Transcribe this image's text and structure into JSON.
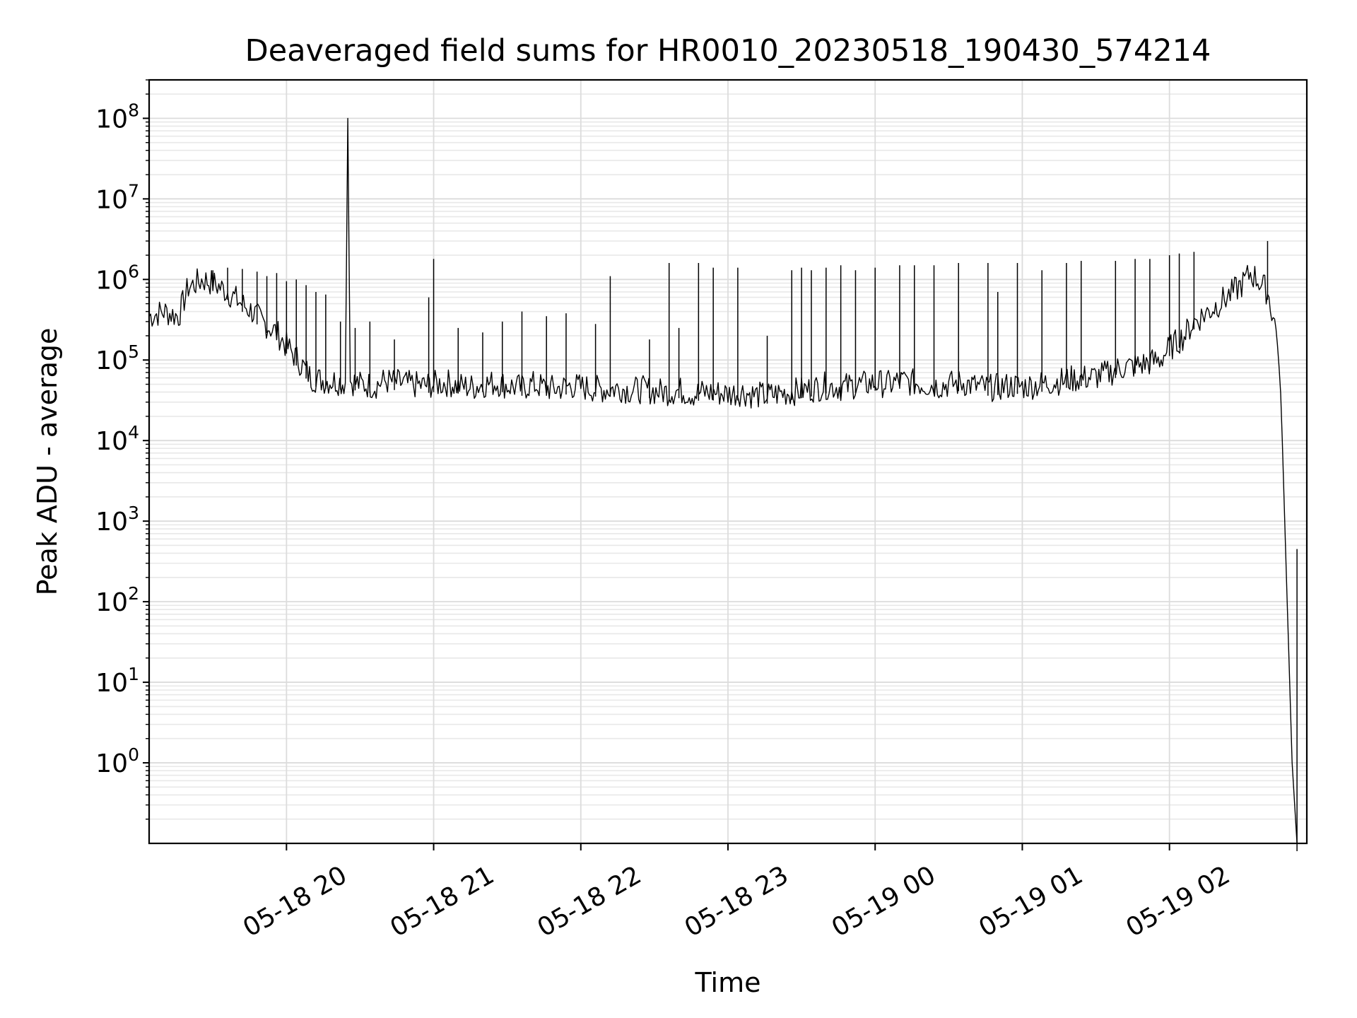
{
  "chart_data": {
    "type": "line",
    "title": "Deaveraged field sums for HR0010_20230518_190430_574214",
    "xlabel": "Time",
    "ylabel": "Peak ADU - average",
    "yscale": "log",
    "grid": true,
    "xlim": [
      "05-18 19:04",
      "05-19 02:56"
    ],
    "ylim": [
      0.1,
      300000000
    ],
    "x_ticks": [
      "05-18 20",
      "05-18 21",
      "05-18 22",
      "05-18 23",
      "05-19 00",
      "05-19 01",
      "05-19 02"
    ],
    "y_ticks": [
      {
        "value": 1,
        "base": "10",
        "exp": "0"
      },
      {
        "value": 10,
        "base": "10",
        "exp": "1"
      },
      {
        "value": 100,
        "base": "10",
        "exp": "2"
      },
      {
        "value": 1000,
        "base": "10",
        "exp": "3"
      },
      {
        "value": 10000,
        "base": "10",
        "exp": "4"
      },
      {
        "value": 100000,
        "base": "10",
        "exp": "5"
      },
      {
        "value": 1000000,
        "base": "10",
        "exp": "6"
      },
      {
        "value": 10000000,
        "base": "10",
        "exp": "7"
      },
      {
        "value": 100000000,
        "base": "10",
        "exp": "8"
      }
    ],
    "line_color": "#000000",
    "series": [
      {
        "x": [
          "05-18 19:04",
          "05-18 19:10",
          "05-18 19:16",
          "05-18 19:20",
          "05-18 19:26",
          "05-18 19:30",
          "05-18 19:36",
          "05-18 19:40",
          "05-18 19:46",
          "05-18 19:50",
          "05-18 19:56",
          "05-18 20:00",
          "05-18 20:06",
          "05-18 20:10",
          "05-18 20:16",
          "05-18 20:20",
          "05-18 20:24",
          "05-18 20:25",
          "05-18 20:26",
          "05-18 20:30",
          "05-18 20:36",
          "05-18 20:40",
          "05-18 20:46",
          "05-18 20:50",
          "05-18 20:56",
          "05-18 21:00",
          "05-18 21:06",
          "05-18 21:10",
          "05-18 21:16",
          "05-18 21:20",
          "05-18 21:26",
          "05-18 21:30",
          "05-18 21:36",
          "05-18 21:40",
          "05-18 21:46",
          "05-18 21:50",
          "05-18 21:56",
          "05-18 22:00",
          "05-18 22:06",
          "05-18 22:10",
          "05-18 22:16",
          "05-18 22:20",
          "05-18 22:26",
          "05-18 22:30",
          "05-18 22:36",
          "05-18 22:40",
          "05-18 22:46",
          "05-18 22:50",
          "05-18 22:56",
          "05-18 23:00",
          "05-18 23:06",
          "05-18 23:10",
          "05-18 23:16",
          "05-18 23:20",
          "05-18 23:26",
          "05-18 23:30",
          "05-18 23:36",
          "05-18 23:40",
          "05-18 23:46",
          "05-18 23:50",
          "05-18 23:56",
          "05-19 00:00",
          "05-19 00:06",
          "05-19 00:10",
          "05-19 00:16",
          "05-19 00:20",
          "05-19 00:26",
          "05-19 00:30",
          "05-19 00:36",
          "05-19 00:40",
          "05-19 00:46",
          "05-19 00:50",
          "05-19 00:56",
          "05-19 01:00",
          "05-19 01:06",
          "05-19 01:10",
          "05-19 01:16",
          "05-19 01:20",
          "05-19 01:26",
          "05-19 01:30",
          "05-19 01:36",
          "05-19 01:40",
          "05-19 01:46",
          "05-19 01:50",
          "05-19 01:56",
          "05-19 02:00",
          "05-19 02:06",
          "05-19 02:10",
          "05-19 02:16",
          "05-19 02:20",
          "05-19 02:26",
          "05-19 02:30",
          "05-19 02:33",
          "05-19 02:36",
          "05-19 02:40",
          "05-19 02:44",
          "05-19 02:46",
          "05-19 02:48",
          "05-19 02:50",
          "05-19 02:52",
          "05-19 02:54",
          "05-19 02:55"
        ],
        "y": [
          350000,
          400000,
          350000,
          800000,
          1000000,
          900000,
          700000,
          550000,
          400000,
          300000,
          220000,
          150000,
          90000,
          60000,
          55000,
          55000,
          52000,
          100000000,
          55000,
          50000,
          48000,
          55000,
          52000,
          50000,
          48000,
          50000,
          52000,
          48000,
          46000,
          50000,
          52000,
          48000,
          45000,
          50000,
          45000,
          44000,
          48000,
          46000,
          44000,
          43000,
          45000,
          42000,
          43000,
          41000,
          40000,
          42000,
          38000,
          40000,
          39000,
          38000,
          40000,
          37000,
          36000,
          38000,
          40000,
          42000,
          45000,
          48000,
          46000,
          48000,
          50000,
          52000,
          50000,
          55000,
          52000,
          50000,
          48000,
          50000,
          52000,
          48000,
          45000,
          46000,
          48000,
          47000,
          49000,
          52000,
          55000,
          58000,
          60000,
          62000,
          70000,
          80000,
          85000,
          90000,
          100000,
          140000,
          200000,
          300000,
          400000,
          500000,
          700000,
          900000,
          1200000,
          1000000,
          700000,
          200000,
          10000,
          100,
          1,
          0.1,
          0.1,
          0.1
        ]
      }
    ],
    "spikes": [
      {
        "x": "05-18 19:30",
        "y": 1300000
      },
      {
        "x": "05-18 19:36",
        "y": 1400000
      },
      {
        "x": "05-18 19:42",
        "y": 1350000
      },
      {
        "x": "05-18 19:48",
        "y": 1250000
      },
      {
        "x": "05-18 19:52",
        "y": 1100000
      },
      {
        "x": "05-18 19:56",
        "y": 1200000
      },
      {
        "x": "05-18 20:00",
        "y": 950000
      },
      {
        "x": "05-18 20:04",
        "y": 1000000
      },
      {
        "x": "05-18 20:08",
        "y": 850000
      },
      {
        "x": "05-18 20:12",
        "y": 700000
      },
      {
        "x": "05-18 20:16",
        "y": 650000
      },
      {
        "x": "05-18 20:22",
        "y": 300000
      },
      {
        "x": "05-18 20:28",
        "y": 250000
      },
      {
        "x": "05-18 20:34",
        "y": 300000
      },
      {
        "x": "05-18 20:44",
        "y": 180000
      },
      {
        "x": "05-18 21:00",
        "y": 1800000
      },
      {
        "x": "05-18 20:58",
        "y": 600000
      },
      {
        "x": "05-18 21:10",
        "y": 250000
      },
      {
        "x": "05-18 21:20",
        "y": 220000
      },
      {
        "x": "05-18 21:28",
        "y": 300000
      },
      {
        "x": "05-18 21:36",
        "y": 400000
      },
      {
        "x": "05-18 21:46",
        "y": 350000
      },
      {
        "x": "05-18 21:54",
        "y": 380000
      },
      {
        "x": "05-18 22:06",
        "y": 280000
      },
      {
        "x": "05-18 22:12",
        "y": 1100000
      },
      {
        "x": "05-18 22:28",
        "y": 180000
      },
      {
        "x": "05-18 22:36",
        "y": 1600000
      },
      {
        "x": "05-18 22:40",
        "y": 250000
      },
      {
        "x": "05-18 22:48",
        "y": 1600000
      },
      {
        "x": "05-18 22:54",
        "y": 1400000
      },
      {
        "x": "05-18 23:04",
        "y": 1400000
      },
      {
        "x": "05-18 23:16",
        "y": 200000
      },
      {
        "x": "05-18 23:26",
        "y": 1300000
      },
      {
        "x": "05-18 23:30",
        "y": 1400000
      },
      {
        "x": "05-18 23:34",
        "y": 1300000
      },
      {
        "x": "05-18 23:40",
        "y": 1400000
      },
      {
        "x": "05-18 23:46",
        "y": 1500000
      },
      {
        "x": "05-18 23:52",
        "y": 1300000
      },
      {
        "x": "05-19 00:00",
        "y": 1400000
      },
      {
        "x": "05-19 00:10",
        "y": 1500000
      },
      {
        "x": "05-19 00:16",
        "y": 1500000
      },
      {
        "x": "05-19 00:24",
        "y": 1500000
      },
      {
        "x": "05-19 00:34",
        "y": 1600000
      },
      {
        "x": "05-19 00:46",
        "y": 1600000
      },
      {
        "x": "05-19 00:50",
        "y": 700000
      },
      {
        "x": "05-19 00:58",
        "y": 1600000
      },
      {
        "x": "05-19 01:08",
        "y": 1300000
      },
      {
        "x": "05-19 01:18",
        "y": 1600000
      },
      {
        "x": "05-19 01:24",
        "y": 1700000
      },
      {
        "x": "05-19 01:38",
        "y": 1700000
      },
      {
        "x": "05-19 01:46",
        "y": 1800000
      },
      {
        "x": "05-19 01:52",
        "y": 1800000
      },
      {
        "x": "05-19 02:00",
        "y": 2000000
      },
      {
        "x": "05-19 02:04",
        "y": 2100000
      },
      {
        "x": "05-19 02:10",
        "y": 2200000
      },
      {
        "x": "05-19 02:40",
        "y": 3000000
      },
      {
        "x": "05-19 02:52",
        "y": 450
      }
    ]
  }
}
